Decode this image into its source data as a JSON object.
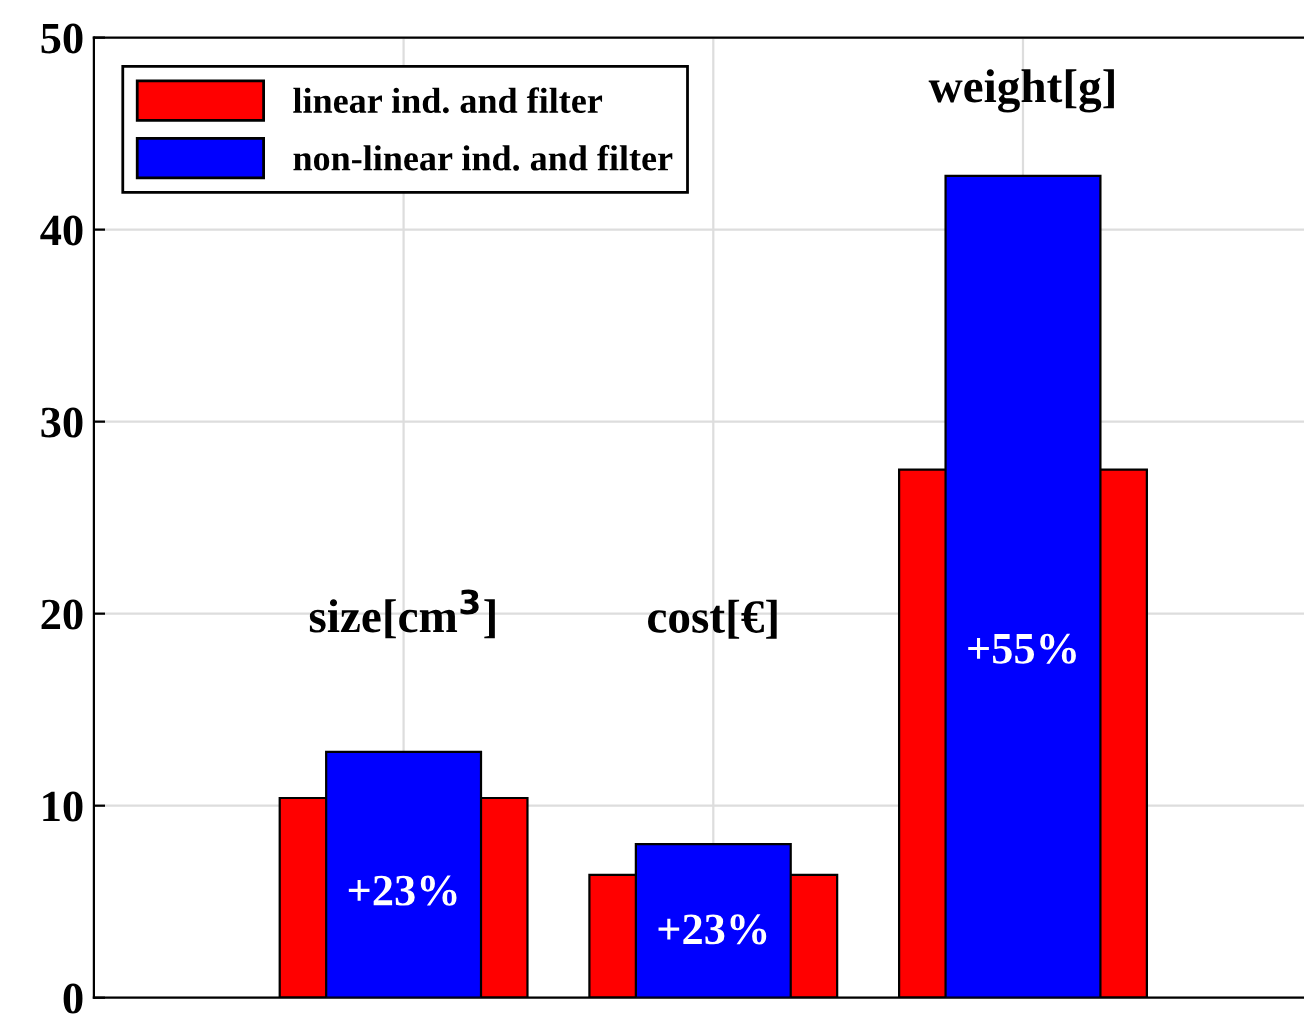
{
  "chart_data": {
    "type": "bar",
    "categories": [
      "size[cm$^{3}$]",
      "cost[€]",
      "weight[g]"
    ],
    "series": [
      {
        "name": "linear ind. and filter",
        "color": "#ff0000",
        "values": [
          10.4,
          6.4,
          27.5
        ]
      },
      {
        "name": "non-linear ind. and filter",
        "color": "#0000ff",
        "values": [
          12.8,
          8.0,
          42.8
        ]
      }
    ],
    "annotations": [
      "+23%",
      "+23%",
      "+55%"
    ],
    "ylim": [
      0,
      50
    ],
    "yticks": [
      0,
      10,
      20,
      30,
      40,
      50
    ],
    "grid": true,
    "legend": "top left",
    "tick_labels": "y"
  }
}
